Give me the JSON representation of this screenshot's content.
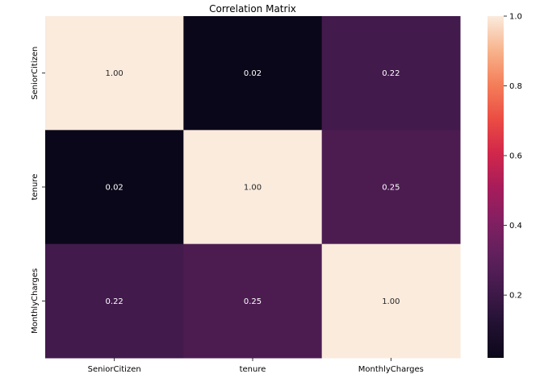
{
  "chart_data": {
    "type": "heatmap",
    "title": "Correlation Matrix",
    "xlabel": "",
    "ylabel": "",
    "x_categories": [
      "SeniorCitizen",
      "tenure",
      "MonthlyCharges"
    ],
    "y_categories": [
      "SeniorCitizen",
      "tenure",
      "MonthlyCharges"
    ],
    "values": [
      [
        1.0,
        0.02,
        0.22
      ],
      [
        0.02,
        1.0,
        0.25
      ],
      [
        0.22,
        0.25,
        1.0
      ]
    ],
    "annotations": [
      [
        "1.00",
        "0.02",
        "0.22"
      ],
      [
        "0.02",
        "1.00",
        "0.25"
      ],
      [
        "0.22",
        "0.25",
        "1.00"
      ]
    ],
    "colorbar": {
      "vmin": 0.02,
      "vmax": 1.0,
      "ticks": [
        0.2,
        0.4,
        0.6,
        0.8,
        1.0
      ],
      "tick_labels": [
        "0.2",
        "0.4",
        "0.6",
        "0.8",
        "1.0"
      ],
      "colormap": "rocket"
    },
    "grid": false,
    "legend": "colorbar-right"
  }
}
